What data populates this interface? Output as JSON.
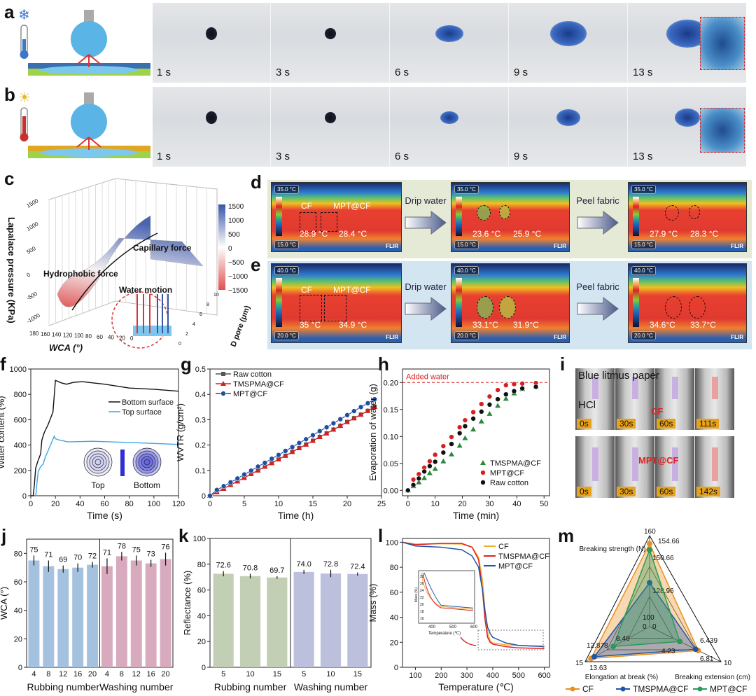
{
  "panels": {
    "a": "a",
    "b": "b",
    "c": "c",
    "d": "d",
    "e": "e",
    "f": "f",
    "g": "g",
    "h": "h",
    "i": "i",
    "j": "j",
    "k": "k",
    "l": "l",
    "m": "m"
  },
  "panel_a": {
    "icon": "snowflake-thermometer-icon",
    "times": [
      "1 s",
      "3 s",
      "6 s",
      "9 s",
      "13 s"
    ]
  },
  "panel_b": {
    "icon": "sun-thermometer-icon",
    "times": [
      "1 s",
      "3 s",
      "6 s",
      "9 s",
      "13 s"
    ]
  },
  "panel_c": {
    "zlabel": "Lapalace pressure (KPa)",
    "xlabel": "WCA (°)",
    "ylabel": "D pore (μm)",
    "annotations": [
      "Capillary force",
      "Hydrophobic force",
      "Water motion"
    ],
    "colorbar": [
      "1500",
      "1000",
      "500",
      "0",
      "−500",
      "−1000",
      "−1500"
    ],
    "zticks": [
      "1500",
      "1000",
      "500",
      "0",
      "-500",
      "-1000"
    ],
    "xticks": [
      "180",
      "160",
      "140",
      "120",
      "100",
      "80",
      "60",
      "40",
      "20",
      "0"
    ],
    "yticks": [
      "0",
      "2",
      "4",
      "6",
      "8",
      "10"
    ]
  },
  "panel_d": {
    "rows": [
      {
        "scale_top": "35.0 °C",
        "scale_bottom": "15.0 °C",
        "brand": "FLIR",
        "labels": [
          "CF",
          "MPT@CF"
        ],
        "frames": [
          [
            "28.9 °C",
            "28.4 °C"
          ],
          [
            "23.6 °C",
            "25.9 °C"
          ],
          [
            "27.9 °C",
            "28.3 °C"
          ]
        ]
      },
      {
        "scale_top": "40.0 °C",
        "scale_bottom": "20.0 °C",
        "brand": "FLIR",
        "labels": [
          "CF",
          "MPT@CF"
        ],
        "frames": [
          [
            "35 °C",
            "34.9 °C"
          ],
          [
            "33.1°C",
            "31.9°C"
          ],
          [
            "34.6°C",
            "33.7°C"
          ]
        ]
      }
    ],
    "arrows": [
      "Drip water",
      "Peel fabric"
    ]
  },
  "panel_i": {
    "labels": [
      "Blue litmus paper",
      "HCl",
      "CF",
      "MPT@CF"
    ],
    "row1": [
      "0s",
      "30s",
      "60s",
      "111s"
    ],
    "row2": [
      "0s",
      "30s",
      "60s",
      "142s"
    ]
  },
  "chart_data": [
    {
      "id": "f",
      "type": "line",
      "xlabel": "Time (s)",
      "ylabel": "Water content (%)",
      "xlim": [
        0,
        120
      ],
      "ylim": [
        0,
        1000
      ],
      "xticks": [
        0,
        20,
        40,
        60,
        80,
        100,
        120
      ],
      "yticks": [
        0,
        200,
        400,
        600,
        800,
        1000
      ],
      "inset_labels": [
        "Top",
        "Bottom"
      ],
      "series": [
        {
          "name": "Bottom surface",
          "color": "#111111",
          "x": [
            0,
            2,
            3,
            4,
            6,
            8,
            9,
            11,
            14,
            18,
            20,
            25,
            29,
            35,
            42,
            60,
            80,
            100,
            120
          ],
          "y": [
            0,
            0,
            100,
            220,
            280,
            330,
            440,
            500,
            560,
            660,
            910,
            890,
            880,
            895,
            900,
            880,
            850,
            840,
            825
          ]
        },
        {
          "name": "Top surface",
          "color": "#3aa8e0",
          "x": [
            4,
            5,
            6,
            8,
            10,
            12,
            16,
            19,
            20,
            23,
            30,
            50,
            80,
            120
          ],
          "y": [
            0,
            100,
            190,
            230,
            250,
            310,
            400,
            470,
            450,
            440,
            425,
            430,
            420,
            405
          ]
        }
      ]
    },
    {
      "id": "g",
      "type": "line",
      "xlabel": "Time (h)",
      "ylabel": "WVTR (g/cm²)",
      "xlim": [
        0,
        25
      ],
      "ylim": [
        0,
        0.5
      ],
      "xticks": [
        0,
        5,
        10,
        15,
        20,
        25
      ],
      "yticks": [
        0.0,
        0.1,
        0.2,
        0.3,
        0.4,
        0.5
      ],
      "x": [
        0,
        1,
        2,
        3,
        4,
        5,
        6,
        7,
        8,
        9,
        10,
        11,
        12,
        13,
        14,
        15,
        16,
        17,
        18,
        19,
        20,
        21,
        22,
        23,
        24
      ],
      "series": [
        {
          "name": "Raw cotton",
          "color": "#555555",
          "marker": "square",
          "y": [
            0,
            0.014,
            0.028,
            0.043,
            0.057,
            0.071,
            0.086,
            0.1,
            0.115,
            0.129,
            0.144,
            0.158,
            0.173,
            0.188,
            0.202,
            0.217,
            0.232,
            0.246,
            0.261,
            0.276,
            0.291,
            0.306,
            0.32,
            0.335,
            0.351
          ]
        },
        {
          "name": "TMSPMA@CF",
          "color": "#d62020",
          "marker": "triangle",
          "y": [
            0,
            0.014,
            0.028,
            0.043,
            0.057,
            0.071,
            0.086,
            0.1,
            0.115,
            0.129,
            0.144,
            0.158,
            0.173,
            0.188,
            0.202,
            0.217,
            0.232,
            0.246,
            0.261,
            0.276,
            0.291,
            0.306,
            0.32,
            0.335,
            0.351
          ]
        },
        {
          "name": "MPT@CF",
          "color": "#1f4fa0",
          "marker": "circle",
          "y": [
            0,
            0.023,
            0.038,
            0.053,
            0.068,
            0.084,
            0.099,
            0.115,
            0.13,
            0.146,
            0.161,
            0.177,
            0.192,
            0.208,
            0.223,
            0.239,
            0.255,
            0.27,
            0.286,
            0.302,
            0.318,
            0.334,
            0.35,
            0.365,
            0.381
          ]
        }
      ]
    },
    {
      "id": "h",
      "type": "scatter",
      "xlabel": "Time (min)",
      "ylabel": "Evaporation of water (g)",
      "xlim": [
        -2,
        52
      ],
      "ylim": [
        -0.01,
        0.225
      ],
      "xticks": [
        0,
        10,
        20,
        30,
        40,
        50
      ],
      "yticks": [
        "0.00",
        "0.05",
        "0.10",
        "0.15",
        "0.20"
      ],
      "reference": {
        "label": "Added water",
        "y": 0.2,
        "color": "#d62020"
      },
      "x": [
        0,
        2,
        4,
        6,
        8,
        10,
        13,
        16,
        19,
        21,
        24,
        27,
        30,
        33,
        36,
        39,
        42,
        47
      ],
      "series": [
        {
          "name": "TMSPMA@CF",
          "color": "#2a8a3a",
          "marker": "triangle",
          "y": [
            0,
            0.008,
            0.015,
            0.023,
            0.032,
            0.04,
            0.054,
            0.067,
            0.083,
            0.097,
            0.113,
            0.128,
            0.142,
            0.157,
            0.17,
            0.18,
            0.188,
            0.192
          ]
        },
        {
          "name": "MPT@CF",
          "color": "#d62020",
          "marker": "circle",
          "y": [
            0,
            0.02,
            0.03,
            0.042,
            0.054,
            0.066,
            0.082,
            0.099,
            0.117,
            0.13,
            0.145,
            0.16,
            0.174,
            0.186,
            0.195,
            0.197,
            0.198,
            0.199
          ]
        },
        {
          "name": "Raw cotton",
          "color": "#111111",
          "marker": "circle",
          "y": [
            0,
            0.01,
            0.022,
            0.035,
            0.045,
            0.053,
            0.07,
            0.086,
            0.106,
            0.119,
            0.133,
            0.146,
            0.159,
            0.169,
            0.178,
            0.184,
            0.189,
            0.192
          ]
        }
      ]
    },
    {
      "id": "j",
      "type": "bar",
      "ylabel": "WCA (°)",
      "ylim": [
        0,
        90
      ],
      "yticks": [
        0,
        20,
        40,
        60,
        80
      ],
      "groups": [
        {
          "name": "Rubbing number",
          "color": "#a4c2df",
          "categories": [
            "4",
            "8",
            "12",
            "16",
            "20"
          ],
          "values": [
            75,
            71,
            69,
            70,
            72
          ],
          "errors": [
            3.5,
            4,
            2.5,
            3,
            2
          ]
        },
        {
          "name": "Washing number",
          "color": "#d7aabd",
          "categories": [
            "4",
            "8",
            "12",
            "16",
            "20"
          ],
          "values": [
            71,
            78,
            75,
            73,
            76
          ],
          "errors": [
            5.5,
            3,
            3.5,
            2.5,
            4.5
          ]
        }
      ]
    },
    {
      "id": "k",
      "type": "bar",
      "ylabel": "Reflectance (%)",
      "ylim": [
        0,
        100
      ],
      "yticks": [
        0,
        20,
        40,
        60,
        80,
        100
      ],
      "groups": [
        {
          "name": "Rubbing number",
          "color": "#c3cfb4",
          "categories": [
            "5",
            "10",
            "15"
          ],
          "values": [
            "72.6",
            "70.8",
            "69.7"
          ],
          "errors": [
            2,
            1.8,
            1
          ]
        },
        {
          "name": "Washing number",
          "color": "#bcc0dc",
          "categories": [
            "5",
            "10",
            "15"
          ],
          "values": [
            "74.0",
            "72.8",
            "72.4"
          ],
          "errors": [
            1.6,
            2.8,
            1.2
          ]
        }
      ]
    },
    {
      "id": "l",
      "type": "line",
      "xlabel": "Temperature (℃)",
      "ylabel": "Mass (%)",
      "xlim": [
        50,
        620
      ],
      "ylim": [
        0,
        103
      ],
      "xticks": [
        100,
        200,
        300,
        400,
        500,
        600
      ],
      "yticks": [
        0,
        20,
        40,
        60,
        80,
        100
      ],
      "inset": {
        "xlabel": "Temperature (℃)",
        "ylabel": "Mass (%)",
        "xticks": [
          400,
          500,
          600
        ],
        "yticks": [
          16,
          18,
          20,
          22,
          24,
          26,
          28
        ]
      },
      "series": [
        {
          "name": "CF",
          "color": "#f0b030",
          "x": [
            50,
            100,
            200,
            280,
            320,
            345,
            360,
            370,
            380,
            390,
            400,
            450,
            500,
            600
          ],
          "y": [
            100,
            98.5,
            98.8,
            98.5,
            96,
            88,
            70,
            45,
            28,
            21,
            19.5,
            18,
            17.5,
            17
          ]
        },
        {
          "name": "TMSPMA@CF",
          "color": "#e02020",
          "x": [
            50,
            100,
            200,
            280,
            320,
            345,
            360,
            370,
            380,
            390,
            400,
            450,
            500,
            600
          ],
          "y": [
            100,
            98,
            99,
            99,
            96,
            86,
            62,
            38,
            24,
            20,
            18.5,
            16.5,
            15.5,
            15
          ]
        },
        {
          "name": "MPT@CF",
          "color": "#1f55a8",
          "x": [
            50,
            100,
            200,
            280,
            320,
            345,
            360,
            370,
            380,
            390,
            400,
            450,
            500,
            600
          ],
          "y": [
            100,
            97,
            96,
            94,
            89,
            80,
            62,
            45,
            32,
            27,
            24,
            19.5,
            17.5,
            16.5
          ]
        }
      ]
    },
    {
      "id": "m",
      "type": "radar",
      "axes": [
        {
          "name": "Breaking strength (N)",
          "min": 100,
          "max": 160
        },
        {
          "name": "Breaking extension (cm)",
          "min": 0,
          "max": 10
        },
        {
          "name": "Elongation at break (%)",
          "min": 0,
          "max": 15
        }
      ],
      "tick_labels": [
        "160",
        "100",
        "0",
        "0",
        "10",
        "15"
      ],
      "series": [
        {
          "name": "CF",
          "color": "#e89020",
          "values": [
            154.66,
            6.81,
            13.63
          ],
          "labels": [
            "154.66",
            "6.81",
            "13.63"
          ]
        },
        {
          "name": "TMSPMA@CF",
          "color": "#1f55a8",
          "values": [
            128.96,
            6.439,
            12.878
          ],
          "labels": [
            "128.96",
            "6.439",
            "12.878"
          ]
        },
        {
          "name": "MPT@CF",
          "color": "#2a9a5a",
          "values": [
            150.66,
            4.23,
            8.46
          ],
          "labels": [
            "150.66",
            "4.23",
            "8.46"
          ]
        }
      ]
    }
  ]
}
